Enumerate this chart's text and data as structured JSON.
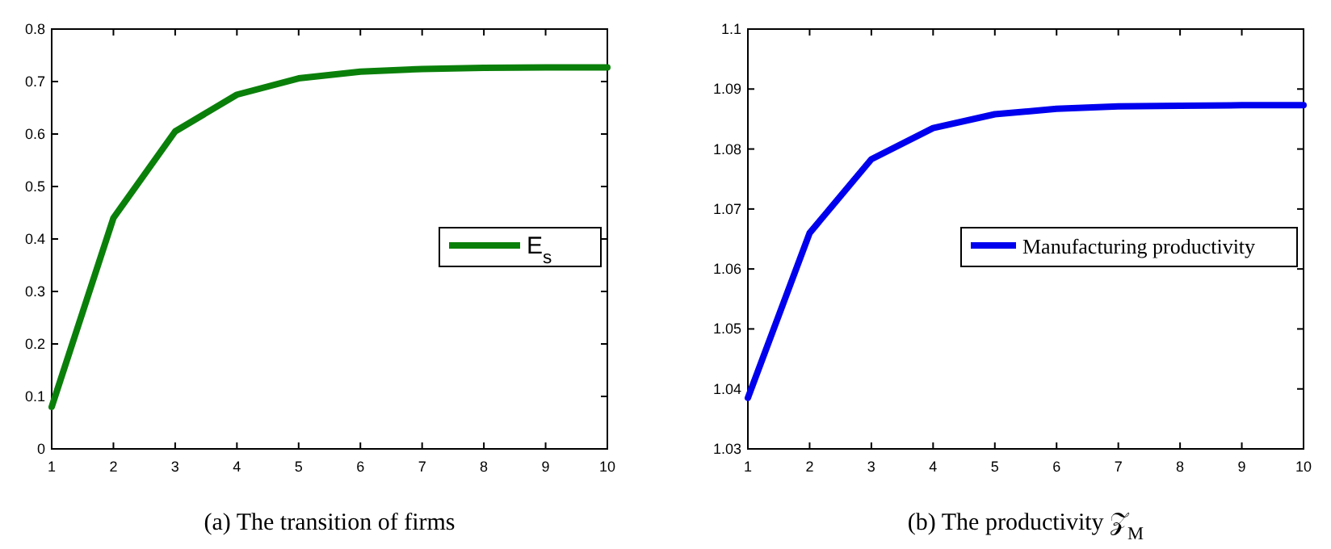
{
  "chart_data": [
    {
      "type": "line",
      "xlabel": "(a)  The transition of firms",
      "x": [
        1,
        2,
        3,
        4,
        5,
        6,
        7,
        8,
        9,
        10
      ],
      "series": [
        {
          "name": "E$_{s}$",
          "color": "#0a800a",
          "values": [
            0.08,
            0.44,
            0.605,
            0.675,
            0.706,
            0.719,
            0.724,
            0.726,
            0.727,
            0.727
          ]
        }
      ],
      "xlim": [
        1,
        10
      ],
      "xticks": [
        1,
        2,
        3,
        4,
        5,
        6,
        7,
        8,
        9,
        10
      ],
      "ylim": [
        0,
        0.8
      ],
      "yticks": [
        0,
        0.1,
        0.2,
        0.3,
        0.4,
        0.5,
        0.6,
        0.7,
        0.8
      ],
      "grid": false,
      "legend": "right",
      "line_style": "solid"
    },
    {
      "type": "line",
      "xlabel": "(b)  The productivity 𝒵$_{M}$",
      "x": [
        1,
        2,
        3,
        4,
        5,
        6,
        7,
        8,
        9,
        10
      ],
      "series": [
        {
          "name": "Manufacturing productivity",
          "color": "#0000ee",
          "values": [
            1.0385,
            1.066,
            1.0783,
            1.0835,
            1.0858,
            1.0867,
            1.0871,
            1.0872,
            1.0873,
            1.0873
          ]
        }
      ],
      "xlim": [
        1,
        10
      ],
      "xticks": [
        1,
        2,
        3,
        4,
        5,
        6,
        7,
        8,
        9,
        10
      ],
      "ylim": [
        1.03,
        1.1
      ],
      "yticks": [
        1.03,
        1.04,
        1.05,
        1.06,
        1.07,
        1.08,
        1.09,
        1.1
      ],
      "grid": false,
      "legend": "right",
      "line_style": "solid"
    }
  ]
}
